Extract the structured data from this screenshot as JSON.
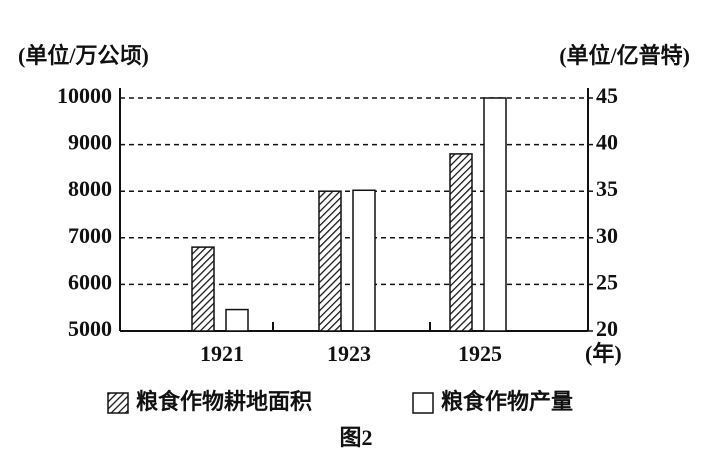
{
  "chart_data": {
    "type": "bar",
    "left_unit": "(单位/万公顷)",
    "right_unit": "(单位/亿普特)",
    "x_unit": "(年)",
    "caption": "图2",
    "categories": [
      "1921",
      "1923",
      "1925"
    ],
    "series": [
      {
        "name": "粮食作物耕地面积",
        "color": "#111111",
        "pattern": "hatch",
        "values": [
          6800,
          8000,
          8800
        ]
      },
      {
        "name": "粮食作物产量",
        "color": "#111111",
        "pattern": "none",
        "axis": "y2",
        "values": [
          22.3,
          35.1,
          45
        ]
      }
    ],
    "ylim": [
      5000,
      10000
    ],
    "yticks": [
      5000,
      6000,
      7000,
      8000,
      9000,
      10000
    ],
    "y2lim": [
      20,
      45
    ],
    "y2ticks": [
      20,
      25,
      30,
      35,
      40,
      45
    ],
    "grid": true
  }
}
